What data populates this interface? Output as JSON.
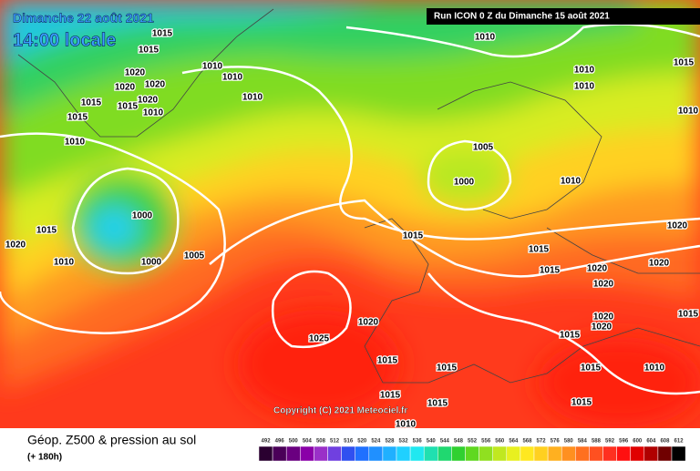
{
  "header": {
    "date": "Dimanche 22 août 2021",
    "time": "14:00 locale",
    "run": "Run ICON 0 Z du Dimanche 15 août 2021"
  },
  "copyright": "Copyright (C) 2021 Meteociel.fr",
  "footer": {
    "title": "Géop. Z500 & pression au sol",
    "lead": "(+ 180h)"
  },
  "isobar_labels": [
    "1015",
    "1015",
    "1010",
    "1015",
    "1010",
    "1010",
    "1010",
    "1010",
    "1020",
    "1020",
    "1020",
    "1020",
    "1015",
    "1015",
    "1010",
    "1015",
    "1010",
    "1010",
    "1005",
    "1010",
    "1000",
    "1010",
    "1000",
    "1015",
    "1020",
    "1015",
    "1015",
    "1020",
    "1005",
    "1000",
    "1010",
    "1015",
    "1020",
    "1020",
    "1020",
    "1020",
    "1020",
    "1020",
    "1015",
    "1025",
    "1015",
    "1015",
    "1015",
    "1015",
    "1010",
    "1015",
    "1015",
    "1015",
    "1010"
  ],
  "color_scale": {
    "values": [
      492,
      496,
      500,
      504,
      508,
      512,
      516,
      520,
      524,
      528,
      532,
      536,
      540,
      544,
      548,
      552,
      556,
      560,
      564,
      568,
      572,
      576,
      580,
      584,
      588,
      592,
      596,
      600,
      604,
      608,
      612
    ],
    "colors": [
      "#2a0030",
      "#4a0058",
      "#6a0080",
      "#8a00a8",
      "#9a30c8",
      "#7040e0",
      "#3050f0",
      "#2070ff",
      "#2090ff",
      "#20b0ff",
      "#20d0ff",
      "#20e8f0",
      "#20e0b0",
      "#20d870",
      "#30d030",
      "#60d820",
      "#90e020",
      "#c0e820",
      "#e8f020",
      "#ffe820",
      "#ffd020",
      "#ffb020",
      "#ff9020",
      "#ff7020",
      "#ff5020",
      "#ff3020",
      "#ff1010",
      "#e00000",
      "#b00000",
      "#700000",
      "#000000"
    ]
  }
}
